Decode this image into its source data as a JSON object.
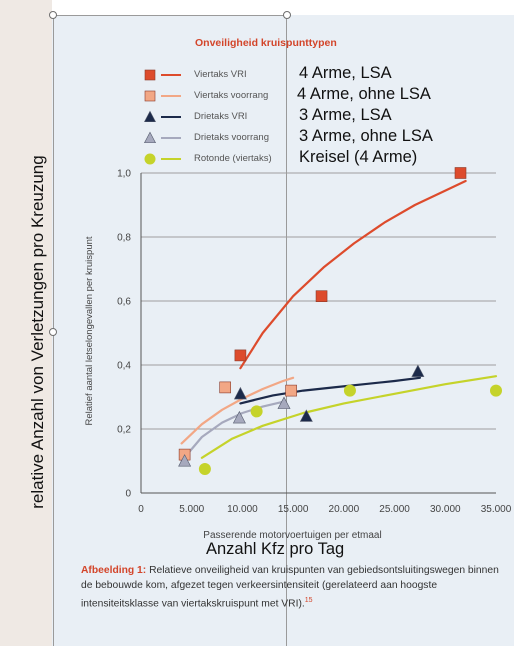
{
  "annotations": {
    "y_axis_note": "relative Anzahl von Verletzungen pro Kreuzung",
    "x_axis_note": "Anzahl Kfz pro Tag"
  },
  "caption": {
    "label": "Afbeelding 1:",
    "text": " Relatieve onveiligheid van kruispunten van gebiedsontsluitingswegen binnen de bebouwde kom, afgezet tegen verkeersintensiteit (gerelateerd aan hoogste intensiteitsklasse van viertakskruispunt met VRI).",
    "footnote": "15"
  },
  "colors": {
    "viertaks_vri": "#dd4b2c",
    "viertaks_voorrang": "#f2a785",
    "drietaks_vri": "#1c2a4a",
    "drietaks_voorrang": "#a6a9bd",
    "rotonde": "#c5d32a",
    "grid": "#9e9e9e",
    "title": "#d3452a"
  },
  "chart_data": {
    "type": "scatter",
    "title": "Onveiligheid kruispunttypen",
    "xlabel": "Passerende motorvoertuigen per etmaal",
    "ylabel": "Relatief aantal letselongevallen per kruispunt",
    "xlim": [
      0,
      35000
    ],
    "ylim": [
      0,
      1.0
    ],
    "xticks": [
      "0",
      "5.000",
      "10.000",
      "15.000",
      "20.000",
      "25.000",
      "30.000",
      "35.000"
    ],
    "yticks": [
      "0",
      "0,2",
      "0,4",
      "0,6",
      "0,8",
      "1,0"
    ],
    "grid": "horizontal",
    "legend_position": "top",
    "series": [
      {
        "name": "Viertaks VRI",
        "note": "4 Arme, LSA",
        "marker": "square",
        "color_key": "viertaks_vri",
        "points": [
          [
            9800,
            0.43
          ],
          [
            17800,
            0.615
          ],
          [
            31500,
            1.0
          ]
        ],
        "trend": [
          [
            9800,
            0.39
          ],
          [
            12000,
            0.5
          ],
          [
            15000,
            0.615
          ],
          [
            18000,
            0.705
          ],
          [
            21000,
            0.78
          ],
          [
            24000,
            0.845
          ],
          [
            27000,
            0.9
          ],
          [
            30000,
            0.945
          ],
          [
            32000,
            0.975
          ]
        ]
      },
      {
        "name": "Viertaks voorrang",
        "note": "4 Arme, ohne LSA",
        "marker": "square",
        "color_key": "viertaks_voorrang",
        "points": [
          [
            4300,
            0.12
          ],
          [
            8300,
            0.33
          ],
          [
            14800,
            0.32
          ]
        ],
        "trend": [
          [
            4000,
            0.155
          ],
          [
            6000,
            0.215
          ],
          [
            8000,
            0.26
          ],
          [
            10000,
            0.295
          ],
          [
            12000,
            0.325
          ],
          [
            14000,
            0.35
          ],
          [
            15000,
            0.36
          ]
        ]
      },
      {
        "name": "Drietaks VRI",
        "note": "3 Arme, LSA",
        "marker": "triangle",
        "color_key": "drietaks_vri",
        "points": [
          [
            9800,
            0.31
          ],
          [
            16300,
            0.24
          ],
          [
            27300,
            0.38
          ]
        ],
        "trend": [
          [
            9800,
            0.28
          ],
          [
            13000,
            0.305
          ],
          [
            16000,
            0.32
          ],
          [
            19000,
            0.33
          ],
          [
            22000,
            0.34
          ],
          [
            25000,
            0.35
          ],
          [
            27500,
            0.36
          ]
        ]
      },
      {
        "name": "Drietaks voorrang",
        "note": "3 Arme, ohne LSA",
        "marker": "triangle",
        "color_key": "drietaks_voorrang",
        "points": [
          [
            4300,
            0.1
          ],
          [
            9700,
            0.235
          ],
          [
            14100,
            0.28
          ]
        ],
        "trend": [
          [
            4000,
            0.1
          ],
          [
            6000,
            0.175
          ],
          [
            8000,
            0.22
          ],
          [
            10000,
            0.25
          ],
          [
            12000,
            0.27
          ],
          [
            14000,
            0.285
          ]
        ]
      },
      {
        "name": "Rotonde (viertaks)",
        "note": "Kreisel (4 Arme)",
        "marker": "circle",
        "color_key": "rotonde",
        "points": [
          [
            6300,
            0.075
          ],
          [
            11400,
            0.255
          ],
          [
            20600,
            0.32
          ],
          [
            35000,
            0.32
          ]
        ],
        "trend": [
          [
            6000,
            0.11
          ],
          [
            9000,
            0.17
          ],
          [
            12000,
            0.21
          ],
          [
            16000,
            0.25
          ],
          [
            20000,
            0.28
          ],
          [
            25000,
            0.31
          ],
          [
            30000,
            0.34
          ],
          [
            35000,
            0.365
          ]
        ]
      }
    ]
  }
}
